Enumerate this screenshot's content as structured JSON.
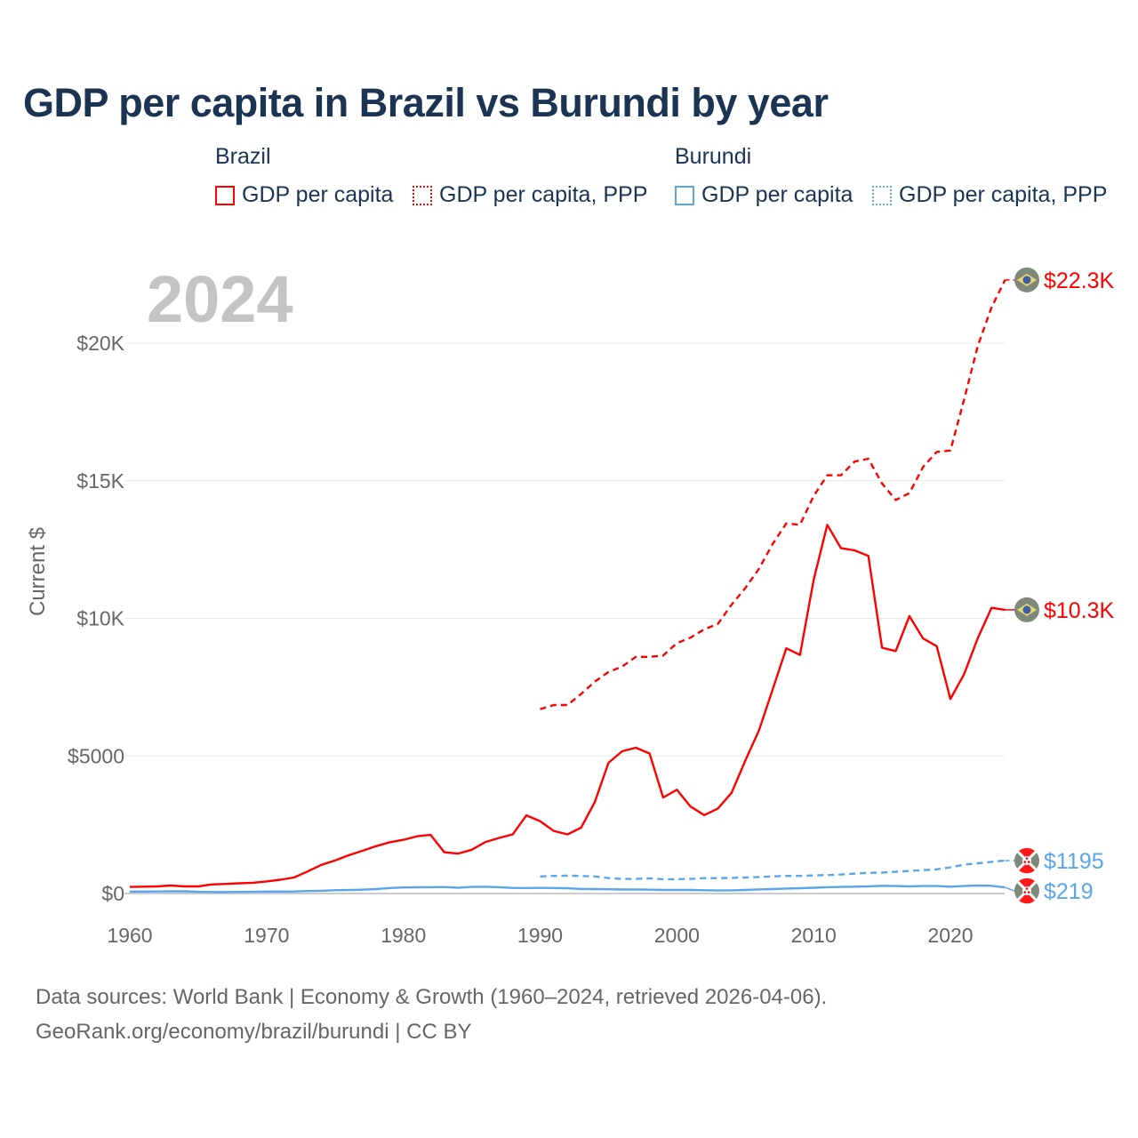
{
  "chart_data": {
    "type": "line",
    "title": "GDP per capita in Brazil vs Burundi by year",
    "year_watermark": "2024",
    "ylabel": "Current $",
    "xlabel": "",
    "xlim": [
      1960,
      2024
    ],
    "ylim": [
      0,
      22500
    ],
    "grid": true,
    "legend_placement": "top",
    "x_ticks": [
      1960,
      1970,
      1980,
      1990,
      2000,
      2010,
      2020
    ],
    "x_tick_labels": [
      "1960",
      "1970",
      "1980",
      "1990",
      "2000",
      "2010",
      "2020"
    ],
    "y_ticks": [
      0,
      5000,
      10000,
      15000,
      20000
    ],
    "y_tick_labels": [
      "$0",
      "$5000",
      "$10K",
      "$15K",
      "$20K"
    ],
    "legend": {
      "groups": [
        {
          "country": "Brazil",
          "items": [
            "GDP per capita",
            "GDP per capita, PPP"
          ]
        },
        {
          "country": "Burundi",
          "items": [
            "GDP per capita",
            "GDP per capita, PPP"
          ]
        }
      ]
    },
    "colors": {
      "brazil": "#ff0000",
      "burundi": "#5aa5ec"
    },
    "series": [
      {
        "name": "Brazil GDP per capita",
        "country": "Brazil",
        "color": "#ff0000",
        "dash": false,
        "end_label": "$10.3K",
        "flag": "brazil-flag",
        "start_year": 1960,
        "values": [
          240,
          250,
          260,
          290,
          260,
          260,
          330,
          350,
          370,
          390,
          440,
          500,
          580,
          800,
          1040,
          1200,
          1390,
          1550,
          1720,
          1860,
          1950,
          2080,
          2130,
          1500,
          1450,
          1590,
          1870,
          2020,
          2150,
          2840,
          2630,
          2270,
          2150,
          2390,
          3320,
          4750,
          5170,
          5300,
          5090,
          3490,
          3770,
          3160,
          2850,
          3090,
          3660,
          4830,
          5920,
          7410,
          8910,
          8670,
          11400,
          13400,
          12550,
          12470,
          12270,
          8930,
          8810,
          10080,
          9270,
          8990,
          7070,
          7970,
          9280,
          10380,
          10310
        ]
      },
      {
        "name": "Brazil GDP per capita, PPP",
        "country": "Brazil",
        "color": "#ff0000",
        "dash": true,
        "end_label": "$22.3K",
        "flag": "brazil-flag",
        "start_year": 1990,
        "values": [
          6700,
          6850,
          6850,
          7250,
          7700,
          8050,
          8250,
          8600,
          8600,
          8650,
          9100,
          9300,
          9600,
          9800,
          10500,
          11100,
          11800,
          12700,
          13450,
          13400,
          14450,
          15200,
          15200,
          15700,
          15800,
          14900,
          14300,
          14550,
          15500,
          16050,
          16100,
          17950,
          19900,
          21300,
          22300
        ]
      },
      {
        "name": "Burundi GDP per capita",
        "country": "Burundi",
        "color": "#5aa5ec",
        "dash": false,
        "end_label": "$219",
        "flag": "burundi-flag",
        "start_year": 1960,
        "values": [
          70,
          72,
          74,
          80,
          82,
          60,
          55,
          56,
          58,
          60,
          70,
          72,
          74,
          90,
          100,
          118,
          125,
          140,
          160,
          200,
          220,
          225,
          230,
          235,
          210,
          240,
          245,
          230,
          205,
          200,
          205,
          200,
          190,
          165,
          160,
          155,
          145,
          150,
          140,
          130,
          130,
          130,
          120,
          110,
          115,
          130,
          150,
          160,
          180,
          190,
          210,
          230,
          240,
          250,
          260,
          280,
          270,
          260,
          270,
          270,
          250,
          270,
          290,
          280,
          219
        ]
      },
      {
        "name": "Burundi GDP per capita, PPP",
        "country": "Burundi",
        "color": "#5aa5ec",
        "dash": true,
        "end_label": "$1195",
        "flag": "burundi-flag",
        "start_year": 1990,
        "values": [
          620,
          640,
          650,
          640,
          620,
          560,
          530,
          530,
          550,
          520,
          520,
          530,
          560,
          560,
          570,
          580,
          600,
          620,
          640,
          640,
          660,
          670,
          690,
          720,
          750,
          760,
          790,
          820,
          850,
          880,
          950,
          1050,
          1100,
          1150,
          1195
        ]
      }
    ]
  },
  "footer": {
    "line1": "Data sources: World Bank | Economy & Growth (1960–2024, retrieved 2026-04-06).",
    "line2": "GeoRank.org/economy/brazil/burundi | CC BY"
  }
}
